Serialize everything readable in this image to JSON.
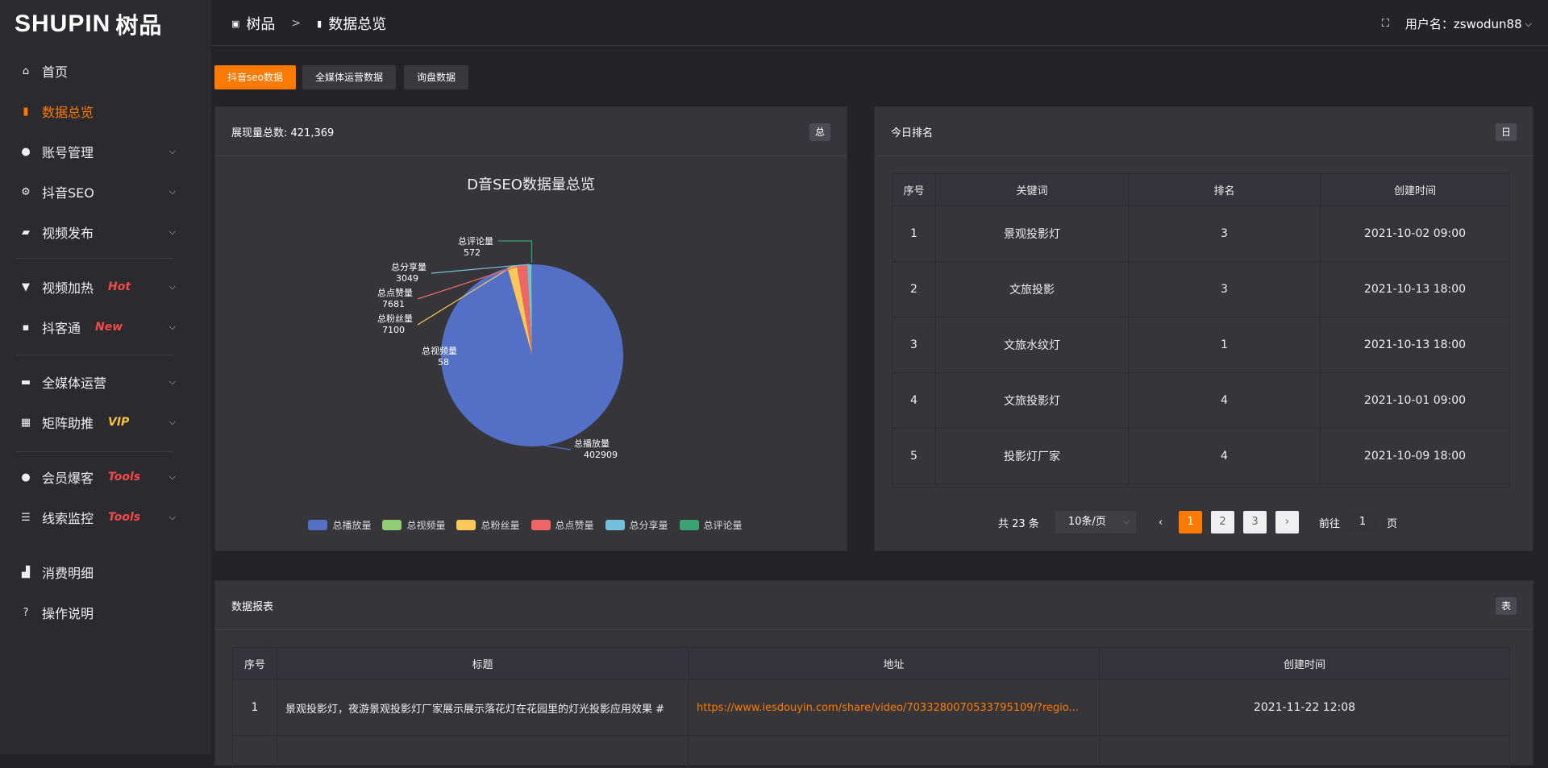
{
  "logo": {
    "text": "SHUPIN",
    "cn": "树品"
  },
  "sidebar": {
    "items": [
      {
        "label": "首页",
        "icon": "home-icon",
        "glyph": "⌂"
      },
      {
        "label": "数据总览",
        "icon": "bar-chart-icon",
        "glyph": "▮",
        "active": true
      },
      {
        "label": "账号管理",
        "icon": "user-icon",
        "glyph": "●",
        "chevron": true
      },
      {
        "label": "抖音SEO",
        "icon": "gear-icon",
        "glyph": "⚙",
        "chevron": true
      },
      {
        "label": "视频发布",
        "icon": "camera-icon",
        "glyph": "▰",
        "chevron": true
      },
      {
        "label": "视频加热",
        "icon": "flag-icon",
        "glyph": "▼",
        "chevron": true,
        "tag": "Hot"
      },
      {
        "label": "抖客通",
        "icon": "chat-icon",
        "glyph": "▪",
        "chevron": true,
        "tag": "New"
      },
      {
        "label": "全媒体运营",
        "icon": "monitor-icon",
        "glyph": "▬",
        "chevron": true
      },
      {
        "label": "矩阵助推",
        "icon": "grid-icon",
        "glyph": "▦",
        "chevron": true,
        "tag": "VIP"
      },
      {
        "label": "会员爆客",
        "icon": "user-icon",
        "glyph": "●",
        "chevron": true,
        "tag": "Tools"
      },
      {
        "label": "线索监控",
        "icon": "sliders-icon",
        "glyph": "☰",
        "chevron": true,
        "tag": "Tools"
      },
      {
        "label": "消费明细",
        "icon": "wallet-icon",
        "glyph": "▟"
      },
      {
        "label": "操作说明",
        "icon": "help-icon",
        "glyph": "?"
      }
    ]
  },
  "header": {
    "breadcrumb": [
      "树品",
      "数据总览"
    ],
    "breadcrumb_sep": ">",
    "user_label": "用户名：zswodun88",
    "fullscreen_icon": "fullscreen-icon"
  },
  "tabs": [
    "抖音seo数据",
    "全媒体运营数据",
    "询盘数据"
  ],
  "pie_card": {
    "title": "展现量总数: 421,369",
    "badge": "总"
  },
  "chart_data": {
    "type": "pie",
    "title": "D音SEO数据量总览",
    "categories": [
      "总播放量",
      "总视频量",
      "总粉丝量",
      "总点赞量",
      "总分享量",
      "总评论量"
    ],
    "values": [
      402909,
      58,
      7100,
      7681,
      3049,
      572
    ],
    "colors": [
      "#5470c6",
      "#91cc75",
      "#fac858",
      "#ee6666",
      "#73c0de",
      "#3ba272"
    ],
    "legend": "bottom"
  },
  "rank_card": {
    "title": "今日排名",
    "badge": "日",
    "columns": [
      "序号",
      "关键词",
      "排名",
      "创建时间"
    ],
    "rows": [
      [
        "1",
        "景观投影灯",
        "3",
        "2021-10-02 09:00"
      ],
      [
        "2",
        "文旅投影",
        "3",
        "2021-10-13 18:00"
      ],
      [
        "3",
        "文旅水纹灯",
        "1",
        "2021-10-13 18:00"
      ],
      [
        "4",
        "文旅投影灯",
        "4",
        "2021-10-01 09:00"
      ],
      [
        "5",
        "投影灯厂家",
        "4",
        "2021-10-09 18:00"
      ]
    ],
    "pager": {
      "total": "共 23 条",
      "page_size": "10条/页",
      "pages": [
        "1",
        "2",
        "3"
      ],
      "current": "1",
      "goto_label": "前往",
      "goto_value": "1",
      "page_unit": "页"
    }
  },
  "report_card": {
    "title": "数据报表",
    "badge": "表",
    "columns": [
      "序号",
      "标题",
      "地址",
      "创建时间"
    ],
    "rows": [
      [
        "1",
        "景观投影灯，夜游景观投影灯厂家展示展示落花灯在花园里的灯光投影应用效果 #",
        "https://www.iesdouyin.com/share/video/7033280070533795109/?regio...",
        "2021-11-22 12:08"
      ]
    ]
  }
}
